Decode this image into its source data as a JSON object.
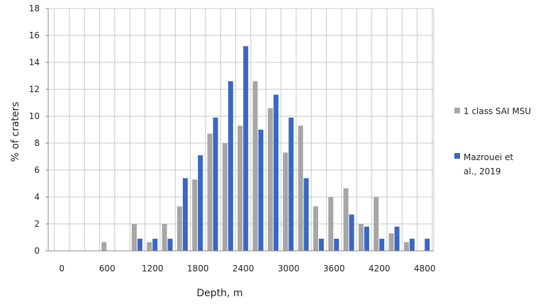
{
  "chart_data": {
    "type": "bar",
    "xlabel": "Depth,  m",
    "ylabel": "% of craters",
    "ylim": [
      0,
      18
    ],
    "y_ticks": [
      "0",
      "2",
      "4",
      "6",
      "8",
      "10",
      "12",
      "14",
      "16",
      "18"
    ],
    "x_tick_labels": [
      "0",
      "600",
      "1200",
      "1800",
      "2400",
      "3000",
      "3600",
      "4200",
      "4800"
    ],
    "x_tick_values": [
      0,
      600,
      1200,
      1800,
      2400,
      3000,
      3600,
      4200,
      4800
    ],
    "grid": true,
    "legend_position": "right",
    "categories": [
      0,
      200,
      400,
      600,
      800,
      1000,
      1200,
      1400,
      1600,
      1800,
      2000,
      2200,
      2400,
      2600,
      2800,
      3000,
      3200,
      3400,
      3600,
      3800,
      4000,
      4200,
      4400,
      4600,
      4800
    ],
    "series": [
      {
        "name": "1 class SAI MSU",
        "color": "#a6a6a6",
        "values": [
          0,
          0,
          0,
          0.65,
          0,
          2.0,
          0.65,
          2.0,
          3.3,
          5.3,
          8.7,
          8.0,
          9.3,
          12.6,
          10.6,
          7.3,
          9.3,
          3.3,
          4.0,
          4.65,
          2.0,
          4.0,
          1.3,
          0.65,
          0
        ]
      },
      {
        "name": "Mazrouei et al., 2019",
        "color": "#3a67c4",
        "values": [
          0,
          0,
          0,
          0,
          0,
          0.9,
          0.9,
          0.9,
          5.4,
          7.1,
          9.9,
          12.6,
          15.2,
          9.0,
          11.6,
          9.9,
          5.4,
          0.9,
          0.9,
          2.7,
          1.8,
          0.9,
          1.8,
          0.9,
          0.9
        ]
      }
    ],
    "legend": {
      "series1_label": "1 class SAI MSU",
      "series2_label_line1": "Mazrouei et",
      "series2_label_line2": "al., 2019"
    }
  }
}
